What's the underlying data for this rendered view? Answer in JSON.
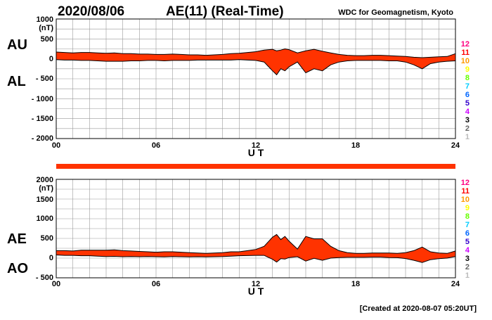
{
  "header": {
    "date": "2020/08/06",
    "title": "AE(11) (Real-Time)",
    "source": "WDC for Geomagnetism, Kyoto"
  },
  "footer": {
    "created": "[Created at 2020-08-07 05:20UT]"
  },
  "colors": {
    "fill": "#ff3300",
    "edge": "#000000",
    "grid": "#999999"
  },
  "legend": {
    "levels": [
      {
        "label": "12",
        "color": "#ff0080"
      },
      {
        "label": "11",
        "color": "#ff0000"
      },
      {
        "label": "10",
        "color": "#ff9900"
      },
      {
        "label": "9",
        "color": "#ffff00"
      },
      {
        "label": "8",
        "color": "#66ff00"
      },
      {
        "label": "7",
        "color": "#00ccff"
      },
      {
        "label": "6",
        "color": "#0066ff"
      },
      {
        "label": "5",
        "color": "#3300cc"
      },
      {
        "label": "4",
        "color": "#cc00ff"
      },
      {
        "label": "3",
        "color": "#000000"
      },
      {
        "label": "2",
        "color": "#666666"
      },
      {
        "label": "1",
        "color": "#bbbbbb"
      }
    ]
  },
  "chart_data": [
    {
      "type": "area",
      "name": "AU/AL panel",
      "label_upper": "AU",
      "label_lower": "AL",
      "unit": "(nT)",
      "xlabel": "U T",
      "xlim": [
        0,
        24
      ],
      "ylim": [
        -2000,
        1000
      ],
      "xticks": [
        "00",
        "06",
        "12",
        "18",
        "24"
      ],
      "yticks": [
        "1000",
        "500",
        "0",
        "- 500",
        "- 1000",
        "- 1500",
        "- 2000"
      ],
      "ytick_values": [
        1000,
        500,
        0,
        -500,
        -1000,
        -1500,
        -2000
      ],
      "x": [
        0,
        0.5,
        1,
        1.5,
        2,
        2.5,
        3,
        3.5,
        4,
        4.5,
        5,
        5.5,
        6,
        6.5,
        7,
        7.5,
        8,
        8.5,
        9,
        9.5,
        10,
        10.5,
        11,
        11.5,
        12,
        12.5,
        13,
        13.25,
        13.5,
        13.75,
        14,
        14.5,
        15,
        15.5,
        16,
        16.5,
        17,
        17.5,
        18,
        18.5,
        19,
        19.5,
        20,
        20.5,
        21,
        21.5,
        22,
        22.5,
        23,
        23.5,
        24
      ],
      "upper": [
        170,
        160,
        150,
        160,
        160,
        150,
        140,
        150,
        130,
        130,
        120,
        120,
        110,
        110,
        120,
        110,
        100,
        100,
        90,
        100,
        110,
        130,
        140,
        160,
        180,
        220,
        240,
        200,
        220,
        250,
        230,
        150,
        200,
        240,
        190,
        150,
        110,
        90,
        80,
        80,
        90,
        90,
        80,
        70,
        60,
        40,
        30,
        40,
        50,
        60,
        130
      ],
      "lower": [
        -20,
        -30,
        -30,
        -40,
        -40,
        -50,
        -60,
        -60,
        -60,
        -50,
        -50,
        -40,
        -40,
        -50,
        -40,
        -40,
        -40,
        -30,
        -30,
        -30,
        -30,
        -30,
        -20,
        -30,
        -40,
        -80,
        -300,
        -400,
        -250,
        -300,
        -200,
        -80,
        -350,
        -250,
        -300,
        -150,
        -80,
        -50,
        -40,
        -40,
        -40,
        -40,
        -50,
        -50,
        -80,
        -150,
        -250,
        -120,
        -80,
        -60,
        -50
      ]
    },
    {
      "type": "area",
      "name": "AE/AO panel",
      "label_upper": "AE",
      "label_lower": "AO",
      "unit": "(nT)",
      "xlabel": "U T",
      "xlim": [
        0,
        24
      ],
      "ylim": [
        -500,
        2000
      ],
      "xticks": [
        "00",
        "06",
        "12",
        "18",
        "24"
      ],
      "yticks": [
        "2000",
        "1500",
        "1000",
        "500",
        "0",
        "- 500"
      ],
      "ytick_values": [
        2000,
        1500,
        1000,
        500,
        0,
        -500
      ],
      "x": [
        0,
        0.5,
        1,
        1.5,
        2,
        2.5,
        3,
        3.5,
        4,
        4.5,
        5,
        5.5,
        6,
        6.5,
        7,
        7.5,
        8,
        8.5,
        9,
        9.5,
        10,
        10.5,
        11,
        11.5,
        12,
        12.5,
        13,
        13.25,
        13.5,
        13.75,
        14,
        14.5,
        15,
        15.5,
        16,
        16.5,
        17,
        17.5,
        18,
        18.5,
        19,
        19.5,
        20,
        20.5,
        21,
        21.5,
        22,
        22.5,
        23,
        23.5,
        24
      ],
      "upper": [
        190,
        190,
        180,
        200,
        200,
        200,
        200,
        210,
        190,
        180,
        170,
        160,
        150,
        160,
        160,
        150,
        140,
        130,
        120,
        130,
        140,
        160,
        160,
        190,
        220,
        300,
        530,
        600,
        470,
        550,
        430,
        230,
        550,
        490,
        490,
        300,
        190,
        140,
        120,
        120,
        130,
        130,
        130,
        120,
        140,
        190,
        280,
        160,
        130,
        120,
        180
      ],
      "lower": [
        80,
        70,
        70,
        60,
        60,
        50,
        40,
        45,
        35,
        40,
        35,
        40,
        35,
        30,
        40,
        35,
        30,
        35,
        30,
        35,
        40,
        50,
        60,
        65,
        70,
        70,
        -30,
        -100,
        -15,
        -25,
        15,
        35,
        -75,
        -5,
        -55,
        0,
        15,
        20,
        20,
        20,
        25,
        25,
        15,
        10,
        -10,
        -55,
        -110,
        -40,
        -15,
        0,
        40
      ]
    }
  ]
}
